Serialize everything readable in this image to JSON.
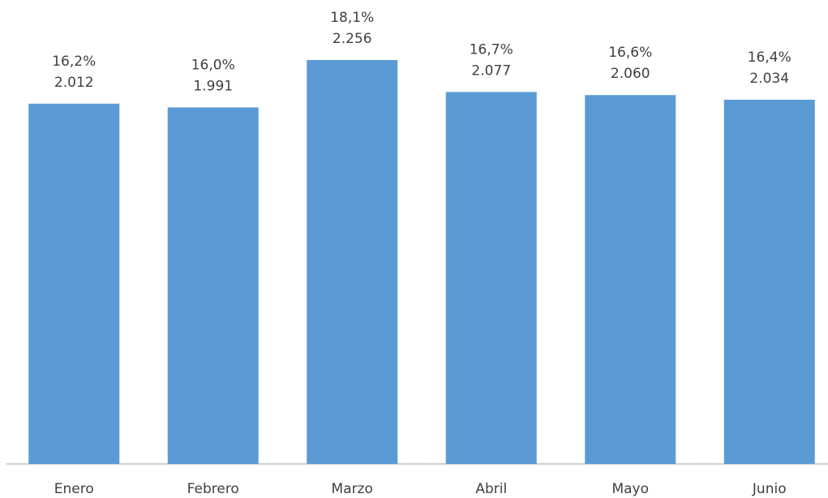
{
  "chart_data": {
    "type": "bar",
    "categories": [
      "Enero",
      "Febrero",
      "Marzo",
      "Abril",
      "Mayo",
      "Junio"
    ],
    "values": [
      2012,
      1991,
      2256,
      2077,
      2060,
      2034
    ],
    "value_labels": [
      "2.012",
      "1.991",
      "2.256",
      "2.077",
      "2.060",
      "2.034"
    ],
    "percent_labels": [
      "16,2%",
      "16,0%",
      "18,1%",
      "16,7%",
      "16,6%",
      "16,4%"
    ],
    "color": "#5b9bd5",
    "ylim": [
      0,
      2600
    ]
  }
}
